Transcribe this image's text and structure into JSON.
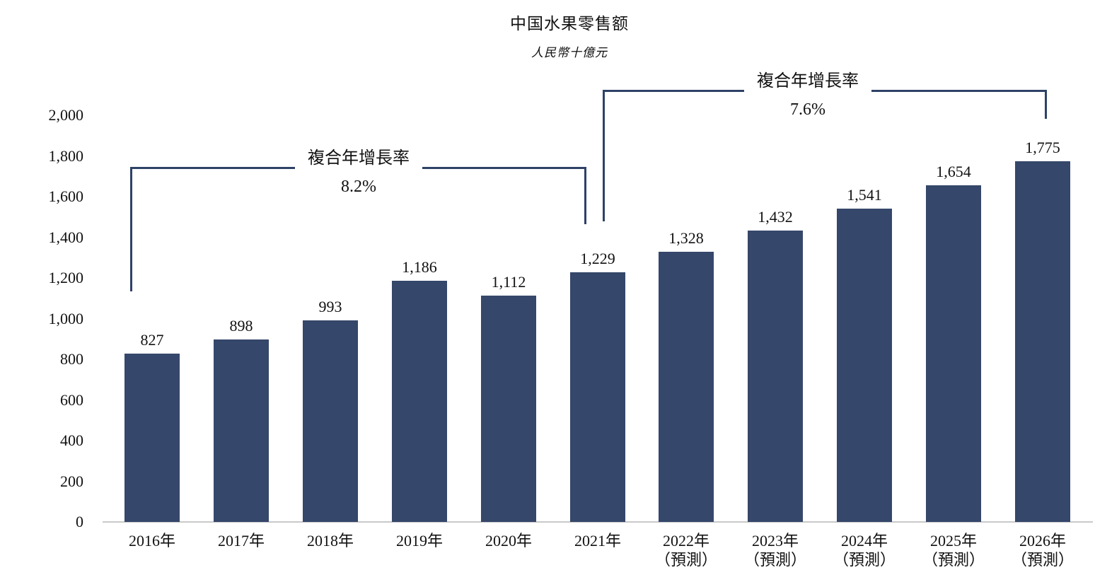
{
  "chart_data": {
    "type": "bar",
    "title": "中国水果零售额",
    "subtitle": "人民幣十億元",
    "unit": "人民幣十億元",
    "categories": [
      {
        "label": "2016年",
        "note": ""
      },
      {
        "label": "2017年",
        "note": ""
      },
      {
        "label": "2018年",
        "note": ""
      },
      {
        "label": "2019年",
        "note": ""
      },
      {
        "label": "2020年",
        "note": ""
      },
      {
        "label": "2021年",
        "note": ""
      },
      {
        "label": "2022年",
        "note": "（預測）"
      },
      {
        "label": "2023年",
        "note": "（預測）"
      },
      {
        "label": "2024年",
        "note": "（預測）"
      },
      {
        "label": "2025年",
        "note": "（預測）"
      },
      {
        "label": "2026年",
        "note": "（預測）"
      }
    ],
    "values": [
      827,
      898,
      993,
      1186,
      1112,
      1229,
      1328,
      1432,
      1541,
      1654,
      1775
    ],
    "value_labels": [
      "827",
      "898",
      "993",
      "1,186",
      "1,112",
      "1,229",
      "1,328",
      "1,432",
      "1,541",
      "1,654",
      "1,775"
    ],
    "ylim": [
      0,
      2000
    ],
    "ytick_interval": 200,
    "ytick_labels": [
      "0",
      "200",
      "400",
      "600",
      "800",
      "1,000",
      "1,200",
      "1,400",
      "1,600",
      "1,800",
      "2,000"
    ],
    "grid": false,
    "legend": false,
    "annotations": [
      {
        "label": "複合年增長率",
        "value": "8.2%",
        "from": "2016年",
        "to": "2021年"
      },
      {
        "label": "複合年增長率",
        "value": "7.6%",
        "from": "2021年",
        "to": "2026年"
      }
    ],
    "colors": {
      "bar": "#35476A",
      "bracket_line": "#2E4267",
      "baseline": "#C9C9C9",
      "text": "#111111"
    }
  }
}
